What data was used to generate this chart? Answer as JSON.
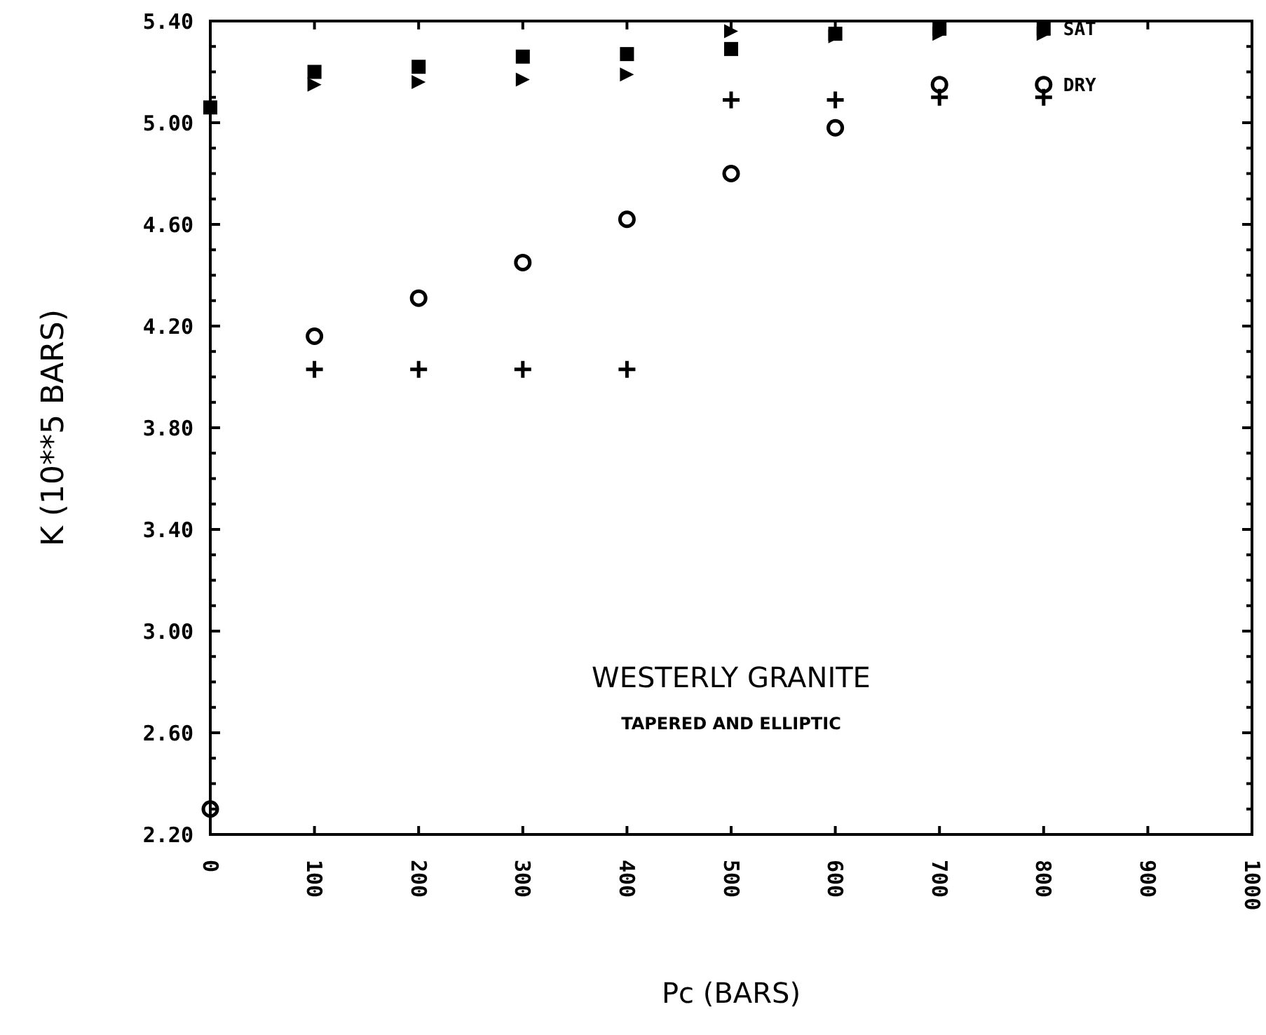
{
  "chart_data": {
    "type": "scatter",
    "xlabel": "Pc  (BARS)",
    "ylabel": "K  (10**5 BARS)",
    "annotations": [
      "WESTERLY GRANITE",
      "TAPERED AND ELLIPTIC"
    ],
    "xlim": [
      0,
      1000
    ],
    "xticks": [
      0,
      100,
      200,
      300,
      400,
      500,
      600,
      700,
      800,
      900,
      1000
    ],
    "ylim": [
      2.2,
      5.4
    ],
    "yticks": [
      {
        "value": 2.2,
        "label": "2.20"
      },
      {
        "value": 2.3,
        "label": null
      },
      {
        "value": 2.4,
        "label": null
      },
      {
        "value": 2.5,
        "label": null
      },
      {
        "value": 2.6,
        "label": "2.60"
      },
      {
        "value": 2.7,
        "label": null
      },
      {
        "value": 2.8,
        "label": null
      },
      {
        "value": 2.9,
        "label": null
      },
      {
        "value": 3.0,
        "label": "3.00"
      },
      {
        "value": 3.1,
        "label": null
      },
      {
        "value": 3.2,
        "label": null
      },
      {
        "value": 3.3,
        "label": null
      },
      {
        "value": 3.4,
        "label": "3.40"
      },
      {
        "value": 3.5,
        "label": null
      },
      {
        "value": 3.6,
        "label": null
      },
      {
        "value": 3.7,
        "label": null
      },
      {
        "value": 3.8,
        "label": "3.80"
      },
      {
        "value": 3.9,
        "label": null
      },
      {
        "value": 4.0,
        "label": null
      },
      {
        "value": 4.1,
        "label": null
      },
      {
        "value": 4.2,
        "label": "4.20"
      },
      {
        "value": 4.3,
        "label": null
      },
      {
        "value": 4.4,
        "label": null
      },
      {
        "value": 4.5,
        "label": null
      },
      {
        "value": 4.6,
        "label": "4.60"
      },
      {
        "value": 4.7,
        "label": null
      },
      {
        "value": 4.8,
        "label": null
      },
      {
        "value": 4.9,
        "label": null
      },
      {
        "value": 5.0,
        "label": "5.00"
      },
      {
        "value": 5.1,
        "label": null
      },
      {
        "value": 5.2,
        "label": null
      },
      {
        "value": 5.3,
        "label": null
      },
      {
        "value": 5.4,
        "label": "5.40"
      }
    ],
    "grid": false,
    "series": [
      {
        "name": "SAT",
        "color": "#000000",
        "marker": "square",
        "x": [
          0,
          100,
          200,
          300,
          400,
          500,
          600,
          700,
          800
        ],
        "values": [
          5.06,
          5.2,
          5.22,
          5.26,
          5.27,
          5.29,
          5.35,
          5.37,
          5.37
        ]
      },
      {
        "color": "#000000",
        "marker": "triangle",
        "x": [
          100,
          200,
          300,
          400,
          500,
          600,
          700,
          800
        ],
        "values": [
          5.15,
          5.16,
          5.17,
          5.19,
          5.36,
          5.34,
          5.35,
          5.35
        ]
      },
      {
        "name": "DRY",
        "color": "#000000",
        "marker": "circle",
        "x": [
          0,
          100,
          200,
          300,
          400,
          500,
          600,
          700,
          800
        ],
        "values": [
          2.3,
          4.16,
          4.31,
          4.45,
          4.62,
          4.8,
          4.98,
          5.15,
          5.15
        ]
      },
      {
        "color": "#000000",
        "marker": "cross",
        "x": [
          100,
          200,
          300,
          400,
          500,
          600,
          700,
          800
        ],
        "values": [
          4.03,
          4.03,
          4.03,
          4.03,
          5.09,
          5.09,
          5.1,
          5.1
        ]
      }
    ]
  }
}
